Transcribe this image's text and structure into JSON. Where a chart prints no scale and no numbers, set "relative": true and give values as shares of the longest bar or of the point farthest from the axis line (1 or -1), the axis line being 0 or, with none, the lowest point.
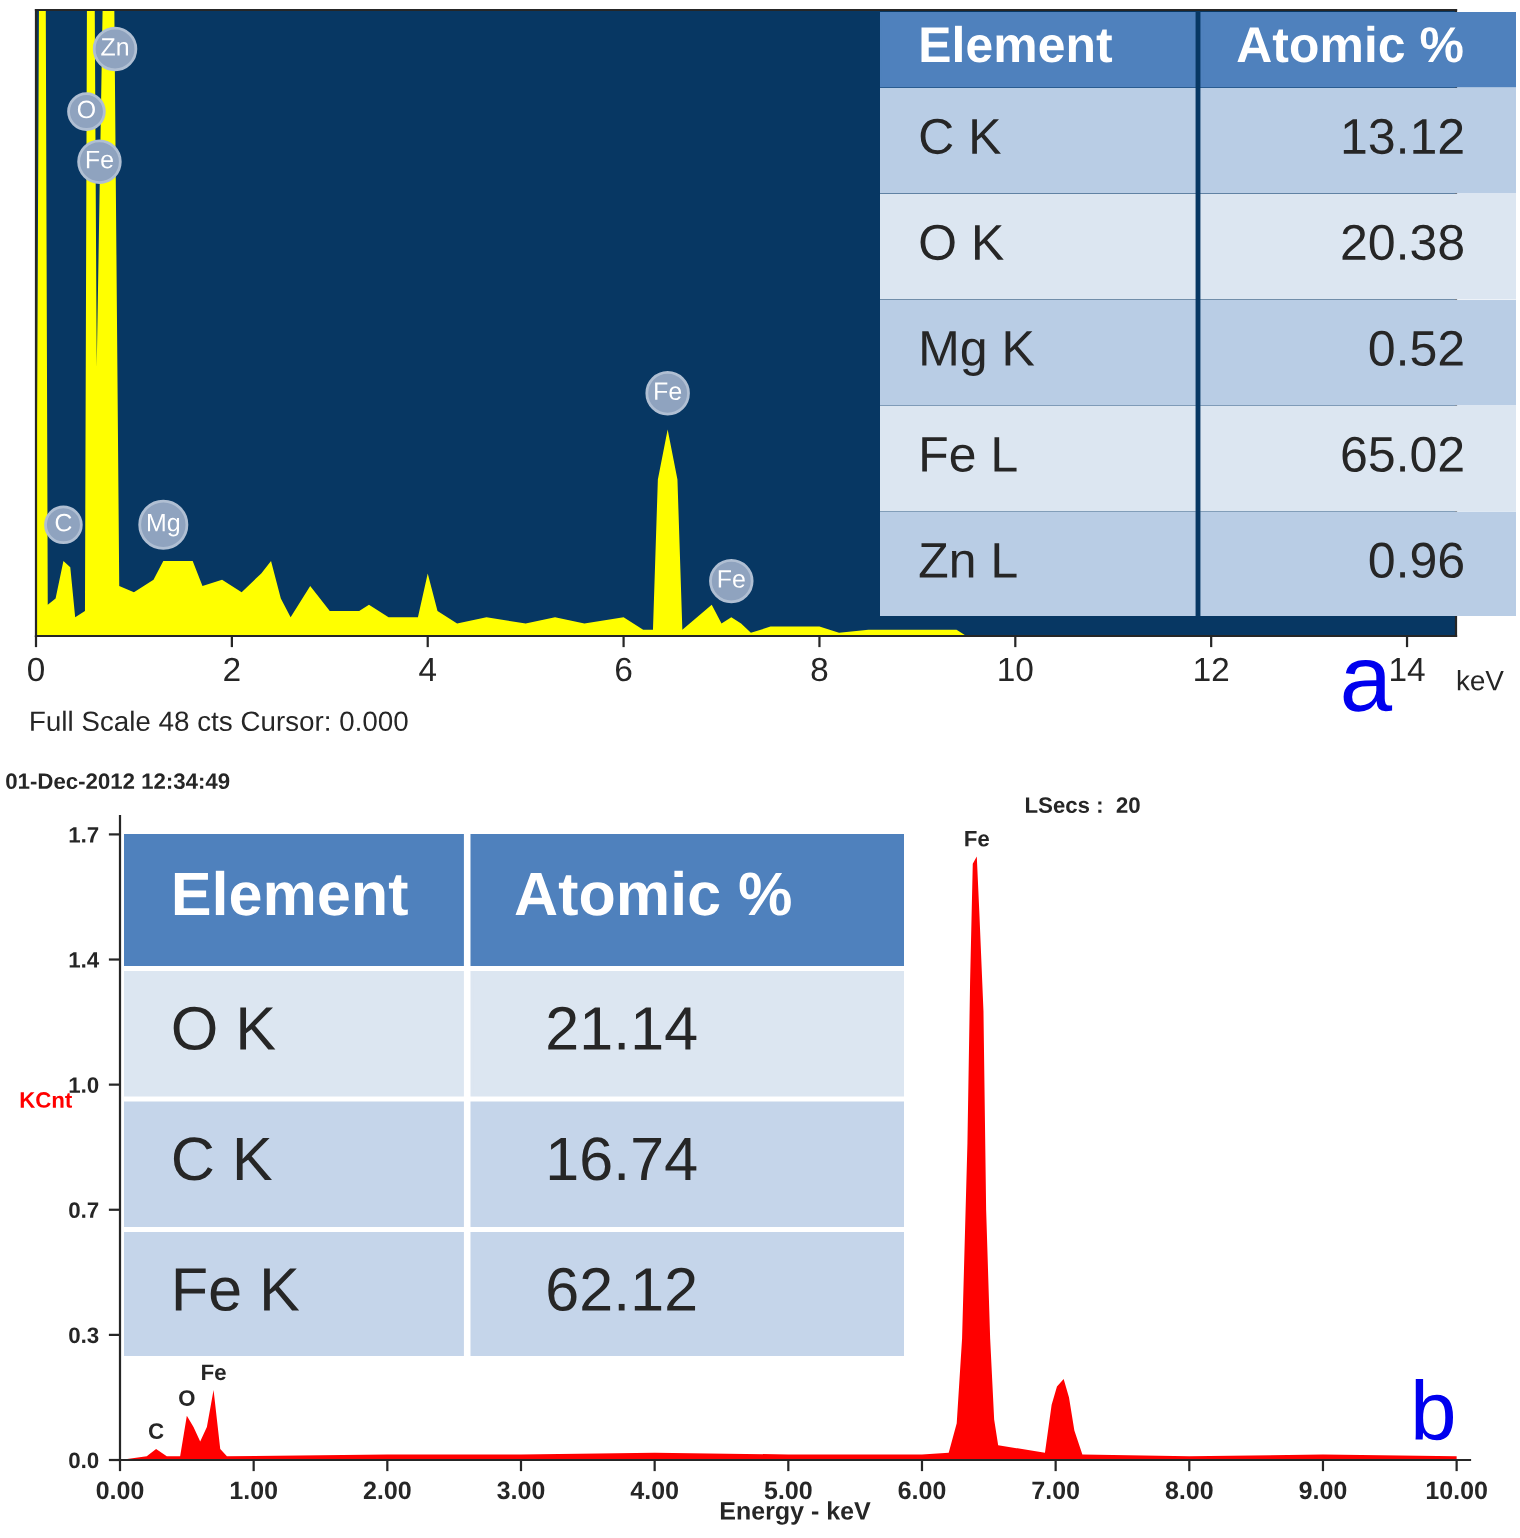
{
  "chart_data": [
    {
      "type": "area",
      "relative": true,
      "xlabel": "keV",
      "xlim": [
        0,
        14.5
      ],
      "xticks": [
        0,
        2,
        4,
        6,
        8,
        10,
        12,
        14
      ],
      "tick_labels": "x",
      "x": [
        0,
        0.03,
        0.1,
        0.12,
        0.2,
        0.28,
        0.35,
        0.4,
        0.5,
        0.52,
        0.6,
        0.62,
        0.68,
        0.8,
        0.85,
        1.0,
        1.2,
        1.3,
        1.5,
        1.6,
        1.7,
        1.9,
        2.0,
        2.1,
        2.3,
        2.4,
        2.5,
        2.6,
        2.8,
        3.0,
        3.3,
        3.4,
        3.6,
        3.9,
        4.0,
        4.1,
        4.3,
        4.6,
        5.0,
        5.3,
        5.6,
        6.0,
        6.2,
        6.3,
        6.35,
        6.45,
        6.55,
        6.6,
        6.9,
        7.0,
        7.1,
        7.2,
        7.3,
        7.5,
        8.0,
        8.2,
        8.5,
        9.0,
        9.4,
        9.5,
        14.5
      ],
      "series": [
        {
          "color": "#ffff00",
          "values": [
            0,
            1,
            1,
            0.05,
            0.06,
            0.12,
            0.11,
            0.03,
            0.04,
            1,
            1,
            0.43,
            1,
            1,
            0.08,
            0.07,
            0.09,
            0.12,
            0.12,
            0.12,
            0.08,
            0.09,
            0.08,
            0.07,
            0.1,
            0.12,
            0.06,
            0.03,
            0.08,
            0.04,
            0.04,
            0.05,
            0.03,
            0.03,
            0.1,
            0.04,
            0.02,
            0.03,
            0.02,
            0.03,
            0.02,
            0.03,
            0.01,
            0.01,
            0.25,
            0.33,
            0.25,
            0.01,
            0.05,
            0.02,
            0.03,
            0.02,
            0.005,
            0.015,
            0.015,
            0.005,
            0.01,
            0.01,
            0.01,
            0,
            0
          ]
        }
      ],
      "annotations": [
        "Full Scale 48 cts Cursor: 0.000",
        "a",
        {
          "text": "C",
          "x": 0.28,
          "y": 0.12
        },
        {
          "text": "O",
          "x": 0.515,
          "y": 0.78
        },
        {
          "text": "Fe",
          "x": 0.648,
          "y": 0.7
        },
        {
          "text": "Zn",
          "x": 0.807,
          "y": 0.88
        },
        {
          "text": "Mg",
          "x": 1.3,
          "y": 0.12
        },
        {
          "text": "Fe",
          "x": 6.45,
          "y": 0.33
        },
        {
          "text": "Fe",
          "x": 7.1,
          "y": 0.03
        }
      ]
    },
    {
      "type": "other",
      "xlabel": "Element",
      "ylabel": "Atomic %",
      "data_labels": true,
      "color": "#4f81bd",
      "categories": [
        "C K",
        "O K",
        "Mg K",
        "Fe L",
        "Zn L"
      ],
      "values": [
        13.12,
        20.38,
        0.52,
        65.02,
        0.96
      ],
      "colors": [
        "#b9cde5",
        "#dce6f1",
        "#b9cde5",
        "#dce6f1",
        "#b9cde5"
      ]
    },
    {
      "type": "area",
      "title": "01-Dec-2012 12:34:49",
      "subtitle": "LSecs :  20",
      "xlabel": "Energy - keV",
      "ylabel": "KCnt",
      "xlim": [
        0,
        10.1
      ],
      "xticks": [
        {
          "value": 0,
          "label": "0.00"
        },
        {
          "value": 1,
          "label": "1.00"
        },
        {
          "value": 2,
          "label": "2.00"
        },
        {
          "value": 3,
          "label": "3.00"
        },
        {
          "value": 4,
          "label": "4.00"
        },
        {
          "value": 5,
          "label": "5.00"
        },
        {
          "value": 6,
          "label": "6.00"
        },
        {
          "value": 7,
          "label": "7.00"
        },
        {
          "value": 8,
          "label": "8.00"
        },
        {
          "value": 9,
          "label": "9.00"
        },
        {
          "value": 10,
          "label": "10.00"
        }
      ],
      "ylim": [
        0,
        1.75
      ],
      "yticks": [
        {
          "value": 0,
          "label": "0.0"
        },
        {
          "value": 0.34,
          "label": "0.3"
        },
        {
          "value": 0.68,
          "label": "0.7"
        },
        {
          "value": 1.02,
          "label": "1.0"
        },
        {
          "value": 1.36,
          "label": "1.4"
        },
        {
          "value": 1.7,
          "label": "1.7"
        }
      ],
      "x": [
        0,
        0.2,
        0.27,
        0.35,
        0.45,
        0.5,
        0.55,
        0.6,
        0.65,
        0.7,
        0.75,
        0.8,
        2.0,
        3.0,
        4.0,
        5.0,
        6.0,
        6.2,
        6.26,
        6.3,
        6.34,
        6.36,
        6.38,
        6.41,
        6.43,
        6.46,
        6.48,
        6.51,
        6.54,
        6.57,
        6.92,
        6.97,
        7.01,
        7.06,
        7.1,
        7.14,
        7.2,
        8.0,
        9.0,
        10.0
      ],
      "series": [
        {
          "color": "#ff0000",
          "values": [
            0,
            0.01,
            0.03,
            0.01,
            0.01,
            0.12,
            0.09,
            0.05,
            0.09,
            0.19,
            0.03,
            0.01,
            0.015,
            0.015,
            0.02,
            0.015,
            0.015,
            0.02,
            0.1,
            0.33,
            0.86,
            1.3,
            1.62,
            1.64,
            1.48,
            1.22,
            0.68,
            0.33,
            0.11,
            0.04,
            0.02,
            0.15,
            0.2,
            0.22,
            0.17,
            0.08,
            0.015,
            0.01,
            0.015,
            0.01
          ]
        }
      ],
      "annotations": [
        "b",
        {
          "text": "C",
          "x": 0.27,
          "y": 0.03
        },
        {
          "text": "O",
          "x": 0.5,
          "y": 0.12
        },
        {
          "text": "Fe",
          "x": 0.7,
          "y": 0.19
        },
        {
          "text": "Fe",
          "x": 6.41,
          "y": 1.64
        }
      ]
    },
    {
      "type": "other",
      "xlabel": "Element",
      "ylabel": "Atomic %",
      "data_labels": true,
      "color": "#4f81bd",
      "categories": [
        "O K",
        "C K",
        "Fe K"
      ],
      "values": [
        21.14,
        16.74,
        62.12
      ],
      "colors": [
        "#dce6f1",
        "#c5d5ea",
        "#c5d5ea"
      ]
    }
  ]
}
